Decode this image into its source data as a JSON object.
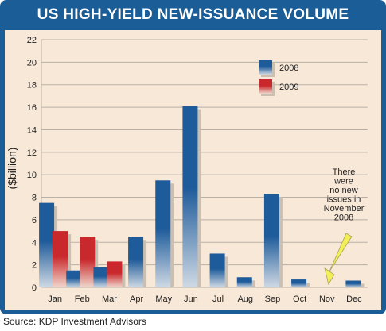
{
  "header": {
    "title": "US HIGH-YIELD NEW-ISSUANCE VOLUME"
  },
  "source": "Source: KDP Investment Advisors",
  "colors": {
    "frame": "#1b5d96",
    "panel": "#f8e8d8",
    "series_2008": "#1e5b9a",
    "series_2009": "#c9282c",
    "arrow": "#f2ee55"
  },
  "chart_data": {
    "type": "bar",
    "title": "US HIGH-YIELD NEW-ISSUANCE VOLUME",
    "ylabel": "($billion)",
    "xlabel": "",
    "ylim": [
      0,
      22
    ],
    "yticks": [
      0,
      2,
      4,
      6,
      8,
      10,
      12,
      14,
      16,
      18,
      20,
      22
    ],
    "grid": true,
    "legend_position": "top-right",
    "categories": [
      "Jan",
      "Feb",
      "Mar",
      "Apr",
      "May",
      "Jun",
      "Jul",
      "Aug",
      "Sep",
      "Oct",
      "Nov",
      "Dec"
    ],
    "series": [
      {
        "name": "2008",
        "values": [
          7.5,
          1.5,
          1.8,
          4.5,
          9.5,
          16.1,
          3.0,
          0.9,
          8.3,
          0.7,
          0,
          0.6
        ]
      },
      {
        "name": "2009",
        "values": [
          5.0,
          4.5,
          2.3,
          null,
          null,
          null,
          null,
          null,
          null,
          null,
          null,
          null
        ]
      }
    ],
    "annotation": {
      "text": "There were no new issues in November 2008",
      "lines": [
        "There",
        "were",
        "no new",
        "issues in",
        "November",
        "2008"
      ],
      "target": "Nov"
    }
  }
}
